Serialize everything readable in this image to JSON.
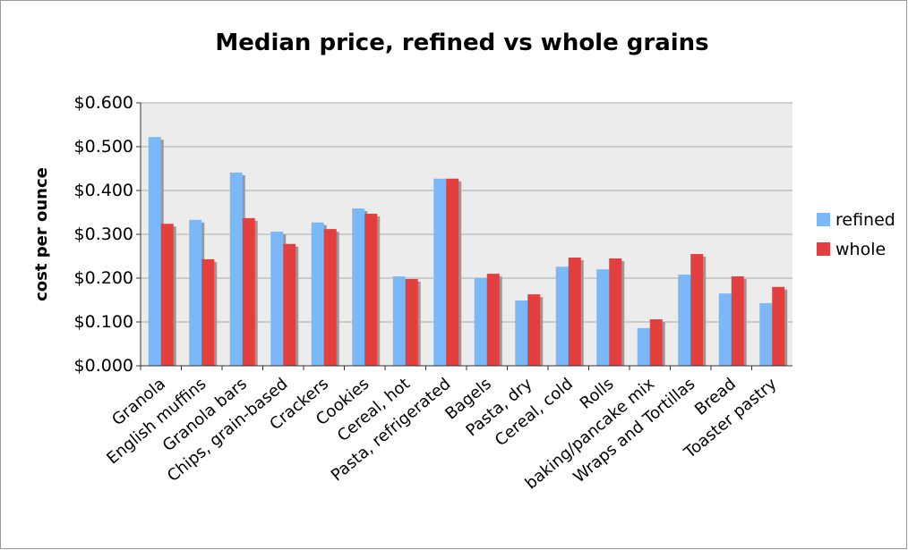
{
  "chart_data": {
    "type": "bar",
    "title": "Median price, refined vs whole grains",
    "y_label": "cost per ounce",
    "categories": [
      "Granola",
      "English muffins",
      "Granola bars",
      "Chips, grain-based",
      "Crackers",
      "Cookies",
      "Cereal, hot",
      "Pasta, refrigerated",
      "Bagels",
      "Pasta, dry",
      "Cereal, cold",
      "Rolls",
      "baking/pancake mix",
      "Wraps and Tortillas",
      "Bread",
      "Toaster pastry"
    ],
    "series": [
      {
        "name": "refined",
        "color": "#7ab8fa",
        "values": [
          0.522,
          0.333,
          0.441,
          0.306,
          0.327,
          0.359,
          0.204,
          0.427,
          0.2,
          0.149,
          0.226,
          0.22,
          0.086,
          0.208,
          0.165,
          0.143
        ]
      },
      {
        "name": "whole",
        "color": "#e43f3f",
        "values": [
          0.324,
          0.243,
          0.337,
          0.278,
          0.312,
          0.347,
          0.198,
          0.427,
          0.21,
          0.163,
          0.247,
          0.245,
          0.106,
          0.255,
          0.204,
          0.18
        ]
      }
    ],
    "ylim": [
      0,
      0.6
    ],
    "yticks": [
      {
        "value": 0,
        "label": "$0.000"
      },
      {
        "value": 0.1,
        "label": "$0.100"
      },
      {
        "value": 0.2,
        "label": "$0.200"
      },
      {
        "value": 0.3,
        "label": "$0.300"
      },
      {
        "value": 0.4,
        "label": "$0.400"
      },
      {
        "value": 0.5,
        "label": "$0.500"
      },
      {
        "value": 0.6,
        "label": "$0.600"
      }
    ],
    "grid": true,
    "legend": "right"
  }
}
